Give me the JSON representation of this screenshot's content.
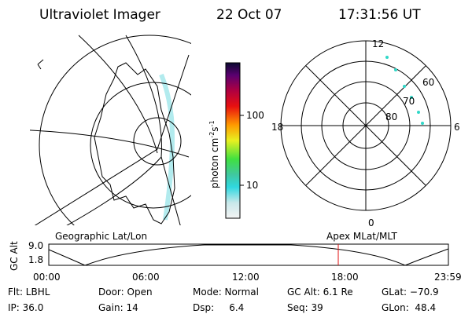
{
  "header": {
    "instrument": "Ultraviolet Imager",
    "date": "22 Oct 07",
    "time": "17:31:56 UT"
  },
  "colorbar": {
    "unit": {
      "base": "photon cm",
      "exp1": "-2",
      "mid": "s",
      "exp2": "-1"
    },
    "ticks": [
      "100",
      "10"
    ]
  },
  "polar": {
    "mlt_labels": [
      "12",
      "18",
      "6",
      "0"
    ],
    "lat_labels": [
      "60",
      "70",
      "80"
    ]
  },
  "altitude_plot": {
    "y_label": "GC Alt",
    "y_ticks": [
      "9.0",
      "1.8"
    ],
    "left_label": "Geographic Lat/Lon",
    "right_label": "Apex MLat/MLT",
    "x_ticks": [
      "00:00",
      "06:00",
      "12:00",
      "18:00",
      "23:59"
    ]
  },
  "info": {
    "rows": [
      [
        "Flt: LBHL",
        "Door: Open",
        "Mode: Normal",
        "GC Alt: 6.1 Re",
        "GLat: −70.9"
      ],
      [
        "IP: 36.0",
        "Gain: 14",
        "Dsp:     6.4",
        "Seq: 39",
        "GLon:  48.4"
      ]
    ]
  }
}
